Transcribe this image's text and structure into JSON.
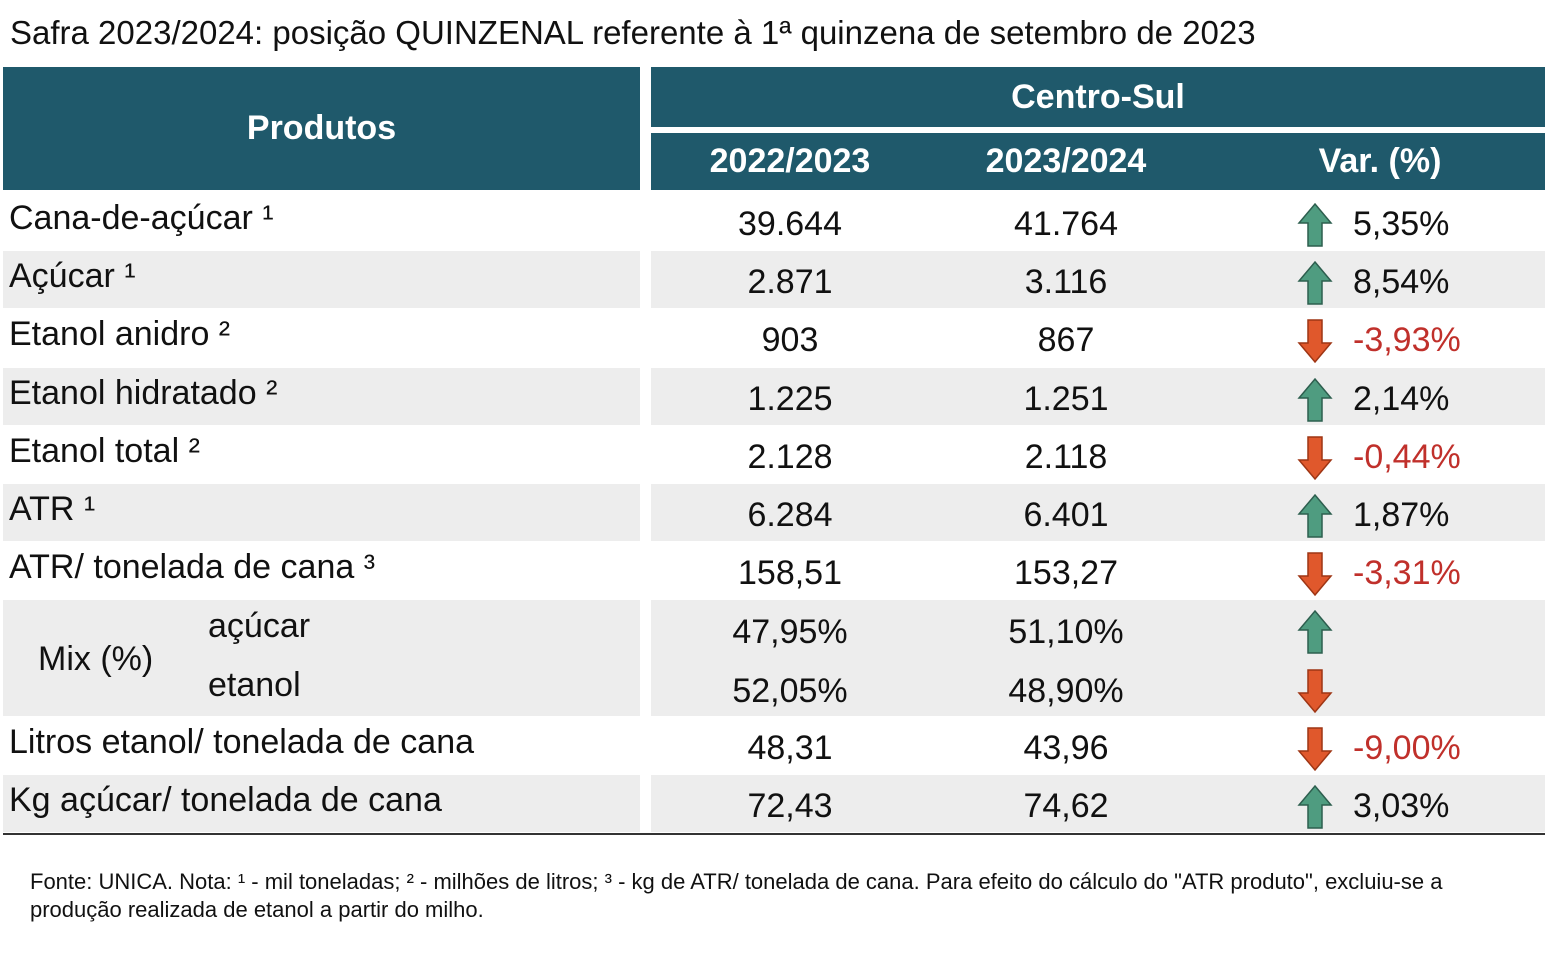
{
  "title": "Safra 2023/2024: posição QUINZENAL referente à 1ª quinzena de setembro de 2023",
  "table": {
    "header": {
      "products": "Produtos",
      "region": "Centro-Sul",
      "columns": [
        "2022/2023",
        "2023/2024",
        "Var. (%)"
      ]
    },
    "rows": [
      {
        "label": "Cana-de-açúcar ¹",
        "values": [
          "39.644",
          "41.764"
        ],
        "trend": "up",
        "var": "5,35%"
      },
      {
        "label": "Açúcar ¹",
        "values": [
          "2.871",
          "3.116"
        ],
        "trend": "up",
        "var": "8,54%"
      },
      {
        "label": "Etanol anidro ²",
        "values": [
          "903",
          "867"
        ],
        "trend": "down",
        "var": "-3,93%"
      },
      {
        "label": "Etanol hidratado ²",
        "values": [
          "1.225",
          "1.251"
        ],
        "trend": "up",
        "var": "2,14%"
      },
      {
        "label": "Etanol total ²",
        "values": [
          "2.128",
          "2.118"
        ],
        "trend": "down",
        "var": "-0,44%"
      },
      {
        "label": "ATR ¹",
        "values": [
          "6.284",
          "6.401"
        ],
        "trend": "up",
        "var": "1,87%"
      },
      {
        "label": "ATR/ tonelada de cana ³",
        "values": [
          "158,51",
          "153,27"
        ],
        "trend": "down",
        "var": "-3,31%"
      },
      {
        "label": "Mix (%)",
        "sub": [
          {
            "label": "açúcar",
            "values": [
              "47,95%",
              "51,10%"
            ],
            "trend": "up"
          },
          {
            "label": "etanol",
            "values": [
              "52,05%",
              "48,90%"
            ],
            "trend": "down"
          }
        ]
      },
      {
        "label": "Litros etanol/ tonelada de cana",
        "values": [
          "48,31",
          "43,96"
        ],
        "trend": "down",
        "var": "-9,00%"
      },
      {
        "label": "Kg açúcar/ tonelada de cana",
        "values": [
          "72,43",
          "74,62"
        ],
        "trend": "up",
        "var": "3,03%"
      }
    ]
  },
  "footnote": "Fonte: UNICA. Nota: ¹ - mil toneladas; ² - milhões de litros; ³ - kg de ATR/ tonelada de cana. Para efeito do cálculo do \"ATR produto\", excluiu-se a produção realizada de etanol a partir do milho."
}
